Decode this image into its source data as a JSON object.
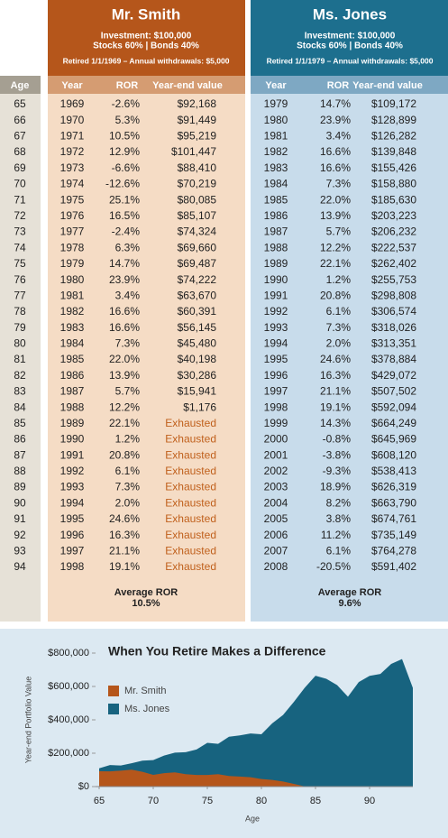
{
  "age_header": "Age",
  "ages": [
    "65",
    "66",
    "67",
    "68",
    "69",
    "70",
    "71",
    "72",
    "73",
    "74",
    "75",
    "76",
    "77",
    "78",
    "79",
    "80",
    "81",
    "82",
    "83",
    "84",
    "85",
    "86",
    "87",
    "88",
    "89",
    "90",
    "91",
    "92",
    "93",
    "94"
  ],
  "smith": {
    "title": "Mr. Smith",
    "investment": "Investment: $100,000",
    "allocation": "Stocks 60%  |  Bonds 40%",
    "retired": "Retired 1/1/1969 – Annual withdrawals: $5,000",
    "columns": [
      "Year",
      "ROR",
      "Year-end value"
    ],
    "rows": [
      [
        "1969",
        "-2.6%",
        "$92,168"
      ],
      [
        "1970",
        "5.3%",
        "$91,449"
      ],
      [
        "1971",
        "10.5%",
        "$95,219"
      ],
      [
        "1972",
        "12.9%",
        "$101,447"
      ],
      [
        "1973",
        "-6.6%",
        "$88,410"
      ],
      [
        "1974",
        "-12.6%",
        "$70,219"
      ],
      [
        "1975",
        "25.1%",
        "$80,085"
      ],
      [
        "1976",
        "16.5%",
        "$85,107"
      ],
      [
        "1977",
        "-2.4%",
        "$74,324"
      ],
      [
        "1978",
        "6.3%",
        "$69,660"
      ],
      [
        "1979",
        "14.7%",
        "$69,487"
      ],
      [
        "1980",
        "23.9%",
        "$74,222"
      ],
      [
        "1981",
        "3.4%",
        "$63,670"
      ],
      [
        "1982",
        "16.6%",
        "$60,391"
      ],
      [
        "1983",
        "16.6%",
        "$56,145"
      ],
      [
        "1984",
        "7.3%",
        "$45,480"
      ],
      [
        "1985",
        "22.0%",
        "$40,198"
      ],
      [
        "1986",
        "13.9%",
        "$30,286"
      ],
      [
        "1987",
        "5.7%",
        "$15,941"
      ],
      [
        "1988",
        "12.2%",
        "$1,176"
      ],
      [
        "1989",
        "22.1%",
        "Exhausted"
      ],
      [
        "1990",
        "1.2%",
        "Exhausted"
      ],
      [
        "1991",
        "20.8%",
        "Exhausted"
      ],
      [
        "1992",
        "6.1%",
        "Exhausted"
      ],
      [
        "1993",
        "7.3%",
        "Exhausted"
      ],
      [
        "1994",
        "2.0%",
        "Exhausted"
      ],
      [
        "1995",
        "24.6%",
        "Exhausted"
      ],
      [
        "1996",
        "16.3%",
        "Exhausted"
      ],
      [
        "1997",
        "21.1%",
        "Exhausted"
      ],
      [
        "1998",
        "19.1%",
        "Exhausted"
      ]
    ],
    "avg_label": "Average ROR",
    "avg_value": "10.5%"
  },
  "jones": {
    "title": "Ms. Jones",
    "investment": "Investment: $100,000",
    "allocation": "Stocks 60%  |  Bonds 40%",
    "retired": "Retired 1/1/1979 – Annual withdrawals: $5,000",
    "columns": [
      "Year",
      "ROR",
      "Year-end value"
    ],
    "rows": [
      [
        "1979",
        "14.7%",
        "$109,172"
      ],
      [
        "1980",
        "23.9%",
        "$128,899"
      ],
      [
        "1981",
        "3.4%",
        "$126,282"
      ],
      [
        "1982",
        "16.6%",
        "$139,848"
      ],
      [
        "1983",
        "16.6%",
        "$155,426"
      ],
      [
        "1984",
        "7.3%",
        "$158,880"
      ],
      [
        "1985",
        "22.0%",
        "$185,630"
      ],
      [
        "1986",
        "13.9%",
        "$203,223"
      ],
      [
        "1987",
        "5.7%",
        "$206,232"
      ],
      [
        "1988",
        "12.2%",
        "$222,537"
      ],
      [
        "1989",
        "22.1%",
        "$262,402"
      ],
      [
        "1990",
        "1.2%",
        "$255,753"
      ],
      [
        "1991",
        "20.8%",
        "$298,808"
      ],
      [
        "1992",
        "6.1%",
        "$306,574"
      ],
      [
        "1993",
        "7.3%",
        "$318,026"
      ],
      [
        "1994",
        "2.0%",
        "$313,351"
      ],
      [
        "1995",
        "24.6%",
        "$378,884"
      ],
      [
        "1996",
        "16.3%",
        "$429,072"
      ],
      [
        "1997",
        "21.1%",
        "$507,502"
      ],
      [
        "1998",
        "19.1%",
        "$592,094"
      ],
      [
        "1999",
        "14.3%",
        "$664,249"
      ],
      [
        "2000",
        "-0.8%",
        "$645,969"
      ],
      [
        "2001",
        "-3.8%",
        "$608,120"
      ],
      [
        "2002",
        "-9.3%",
        "$538,413"
      ],
      [
        "2003",
        "18.9%",
        "$626,319"
      ],
      [
        "2004",
        "8.2%",
        "$663,790"
      ],
      [
        "2005",
        "3.8%",
        "$674,761"
      ],
      [
        "2006",
        "11.2%",
        "$735,149"
      ],
      [
        "2007",
        "6.1%",
        "$764,278"
      ],
      [
        "2008",
        "-20.5%",
        "$591,402"
      ]
    ],
    "avg_label": "Average ROR",
    "avg_value": "9.6%"
  },
  "chart_data": {
    "type": "area",
    "title": "When You Retire Makes a Difference",
    "x_label": "Age",
    "y_label": "Year-end Portfolio Value",
    "x": [
      65,
      66,
      67,
      68,
      69,
      70,
      71,
      72,
      73,
      74,
      75,
      76,
      77,
      78,
      79,
      80,
      81,
      82,
      83,
      84,
      85,
      86,
      87,
      88,
      89,
      90,
      91,
      92,
      93,
      94
    ],
    "xlim": [
      65,
      94
    ],
    "xticks": [
      65,
      70,
      75,
      80,
      85,
      90
    ],
    "ylim": [
      0,
      800000
    ],
    "yticks": [
      {
        "value": 0,
        "label": "$0"
      },
      {
        "value": 200000,
        "label": "$200,000"
      },
      {
        "value": 400000,
        "label": "$400,000"
      },
      {
        "value": 600000,
        "label": "$600,000"
      },
      {
        "value": 800000,
        "label": "$800,000"
      }
    ],
    "series": [
      {
        "name": "Ms. Jones",
        "color": "#17637f",
        "values": [
          109172,
          128899,
          126282,
          139848,
          155426,
          158880,
          185630,
          203223,
          206232,
          222537,
          262402,
          255753,
          298808,
          306574,
          318026,
          313351,
          378884,
          429072,
          507502,
          592094,
          664249,
          645969,
          608120,
          538413,
          626319,
          663790,
          674761,
          735149,
          764278,
          591402
        ]
      },
      {
        "name": "Mr. Smith",
        "color": "#b5561b",
        "values": [
          92168,
          91449,
          95219,
          101447,
          88410,
          70219,
          80085,
          85107,
          74324,
          69660,
          69487,
          74222,
          63670,
          60391,
          56145,
          45480,
          40198,
          30286,
          15941,
          1176,
          0,
          0,
          0,
          0,
          0,
          0,
          0,
          0,
          0,
          0
        ]
      }
    ]
  }
}
